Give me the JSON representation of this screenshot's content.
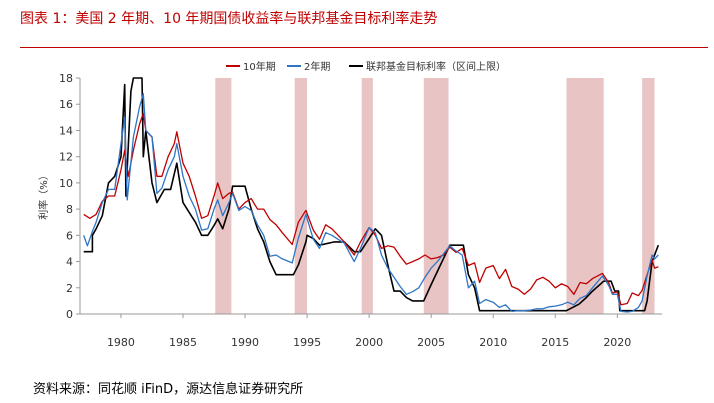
{
  "figure": {
    "title": "图表 1：美国 2 年期、10 年期国债收益率与联邦基金目标利率走势",
    "source": "资料来源：同花顺 iFinD，源达信息证券研究所"
  },
  "chart_data": {
    "type": "line",
    "title": "",
    "xlabel": "",
    "ylabel": "利率（%）",
    "xlim": [
      1976.7,
      2023.6
    ],
    "ylim": [
      0,
      18
    ],
    "yticks": [
      0,
      2,
      4,
      6,
      8,
      10,
      12,
      14,
      16,
      18
    ],
    "xticks": [
      1980,
      1985,
      1990,
      1995,
      2000,
      2005,
      2010,
      2015,
      2020
    ],
    "grid": false,
    "legend_position": "top-center",
    "recessions": [
      [
        1987.6,
        1988.9
      ],
      [
        1994.0,
        1995.0
      ],
      [
        1999.4,
        2000.3
      ],
      [
        2004.4,
        2006.4
      ],
      [
        2015.9,
        2018.9
      ],
      [
        2022.0,
        2023.0
      ]
    ],
    "recession_color": "#e8c4c4",
    "series": [
      {
        "name": "10年期",
        "color": "#c00000",
        "points": [
          [
            1977.0,
            7.6
          ],
          [
            1977.5,
            7.3
          ],
          [
            1978.0,
            7.6
          ],
          [
            1978.5,
            8.6
          ],
          [
            1979.0,
            9.0
          ],
          [
            1979.5,
            9.0
          ],
          [
            1980.0,
            11.0
          ],
          [
            1980.3,
            12.5
          ],
          [
            1980.6,
            10.5
          ],
          [
            1981.0,
            12.5
          ],
          [
            1981.5,
            14.5
          ],
          [
            1981.8,
            15.3
          ],
          [
            1982.0,
            14.0
          ],
          [
            1982.5,
            13.5
          ],
          [
            1982.9,
            10.5
          ],
          [
            1983.3,
            10.5
          ],
          [
            1983.8,
            12.0
          ],
          [
            1984.3,
            13.0
          ],
          [
            1984.5,
            13.9
          ],
          [
            1985.0,
            11.5
          ],
          [
            1985.5,
            10.5
          ],
          [
            1986.0,
            9.0
          ],
          [
            1986.5,
            7.3
          ],
          [
            1987.0,
            7.5
          ],
          [
            1987.5,
            9.0
          ],
          [
            1987.8,
            10.0
          ],
          [
            1988.2,
            8.8
          ],
          [
            1988.7,
            9.2
          ],
          [
            1989.0,
            9.3
          ],
          [
            1989.5,
            8.0
          ],
          [
            1990.0,
            8.5
          ],
          [
            1990.5,
            8.8
          ],
          [
            1991.0,
            8.0
          ],
          [
            1991.5,
            8.0
          ],
          [
            1992.0,
            7.2
          ],
          [
            1992.5,
            6.8
          ],
          [
            1993.0,
            6.2
          ],
          [
            1993.8,
            5.3
          ],
          [
            1994.3,
            7.0
          ],
          [
            1994.9,
            7.9
          ],
          [
            1995.5,
            6.4
          ],
          [
            1996.0,
            5.7
          ],
          [
            1996.5,
            6.8
          ],
          [
            1997.0,
            6.5
          ],
          [
            1997.5,
            6.0
          ],
          [
            1998.0,
            5.5
          ],
          [
            1998.8,
            4.5
          ],
          [
            1999.3,
            5.5
          ],
          [
            2000.0,
            6.6
          ],
          [
            2000.5,
            6.0
          ],
          [
            2001.0,
            5.0
          ],
          [
            2001.5,
            5.2
          ],
          [
            2002.0,
            5.1
          ],
          [
            2002.5,
            4.4
          ],
          [
            2003.0,
            3.8
          ],
          [
            2003.5,
            4.0
          ],
          [
            2004.0,
            4.2
          ],
          [
            2004.5,
            4.5
          ],
          [
            2005.0,
            4.2
          ],
          [
            2005.5,
            4.3
          ],
          [
            2006.0,
            4.5
          ],
          [
            2006.5,
            5.1
          ],
          [
            2007.0,
            4.7
          ],
          [
            2007.5,
            5.0
          ],
          [
            2008.0,
            3.7
          ],
          [
            2008.5,
            3.9
          ],
          [
            2008.9,
            2.4
          ],
          [
            2009.4,
            3.5
          ],
          [
            2010.0,
            3.7
          ],
          [
            2010.5,
            2.7
          ],
          [
            2011.0,
            3.4
          ],
          [
            2011.5,
            2.1
          ],
          [
            2012.0,
            1.9
          ],
          [
            2012.5,
            1.5
          ],
          [
            2013.0,
            1.9
          ],
          [
            2013.5,
            2.6
          ],
          [
            2014.0,
            2.8
          ],
          [
            2014.5,
            2.5
          ],
          [
            2015.0,
            2.0
          ],
          [
            2015.5,
            2.3
          ],
          [
            2016.0,
            2.1
          ],
          [
            2016.5,
            1.5
          ],
          [
            2017.0,
            2.4
          ],
          [
            2017.5,
            2.3
          ],
          [
            2018.0,
            2.7
          ],
          [
            2018.8,
            3.1
          ],
          [
            2019.3,
            2.4
          ],
          [
            2019.6,
            1.6
          ],
          [
            2020.0,
            1.7
          ],
          [
            2020.3,
            0.7
          ],
          [
            2020.8,
            0.8
          ],
          [
            2021.2,
            1.6
          ],
          [
            2021.7,
            1.4
          ],
          [
            2022.0,
            1.8
          ],
          [
            2022.4,
            3.0
          ],
          [
            2022.8,
            4.1
          ],
          [
            2023.0,
            3.5
          ],
          [
            2023.3,
            3.6
          ]
        ]
      },
      {
        "name": "2年期",
        "color": "#2e75c6",
        "points": [
          [
            1977.0,
            6.0
          ],
          [
            1977.3,
            5.2
          ],
          [
            1977.7,
            6.3
          ],
          [
            1978.0,
            7.0
          ],
          [
            1978.5,
            8.5
          ],
          [
            1979.0,
            9.5
          ],
          [
            1979.5,
            9.5
          ],
          [
            1980.0,
            13.0
          ],
          [
            1980.3,
            15.0
          ],
          [
            1980.5,
            8.7
          ],
          [
            1981.0,
            13.5
          ],
          [
            1981.5,
            15.8
          ],
          [
            1981.8,
            16.8
          ],
          [
            1982.0,
            14.0
          ],
          [
            1982.5,
            13.5
          ],
          [
            1982.9,
            9.2
          ],
          [
            1983.3,
            9.6
          ],
          [
            1983.8,
            11.0
          ],
          [
            1984.3,
            12.0
          ],
          [
            1984.5,
            13.0
          ],
          [
            1985.0,
            10.5
          ],
          [
            1985.5,
            9.0
          ],
          [
            1986.0,
            8.0
          ],
          [
            1986.5,
            6.4
          ],
          [
            1987.0,
            6.5
          ],
          [
            1987.5,
            8.0
          ],
          [
            1987.8,
            8.7
          ],
          [
            1988.2,
            7.5
          ],
          [
            1988.7,
            8.5
          ],
          [
            1989.0,
            9.2
          ],
          [
            1989.5,
            7.9
          ],
          [
            1990.0,
            8.2
          ],
          [
            1990.5,
            7.9
          ],
          [
            1991.0,
            6.8
          ],
          [
            1991.5,
            6.0
          ],
          [
            1992.0,
            4.4
          ],
          [
            1992.5,
            4.5
          ],
          [
            1993.0,
            4.2
          ],
          [
            1993.8,
            3.9
          ],
          [
            1994.3,
            5.8
          ],
          [
            1994.9,
            7.6
          ],
          [
            1995.5,
            5.7
          ],
          [
            1996.0,
            5.0
          ],
          [
            1996.5,
            6.2
          ],
          [
            1997.0,
            6.0
          ],
          [
            1997.5,
            5.7
          ],
          [
            1998.0,
            5.4
          ],
          [
            1998.8,
            4.0
          ],
          [
            1999.3,
            5.0
          ],
          [
            2000.0,
            6.6
          ],
          [
            2000.5,
            6.2
          ],
          [
            2001.0,
            4.5
          ],
          [
            2001.5,
            3.5
          ],
          [
            2002.0,
            2.8
          ],
          [
            2002.5,
            2.1
          ],
          [
            2003.0,
            1.5
          ],
          [
            2003.5,
            1.7
          ],
          [
            2004.0,
            2.0
          ],
          [
            2004.5,
            2.8
          ],
          [
            2005.0,
            3.5
          ],
          [
            2005.5,
            4.0
          ],
          [
            2006.0,
            4.6
          ],
          [
            2006.5,
            5.2
          ],
          [
            2007.0,
            4.8
          ],
          [
            2007.5,
            4.5
          ],
          [
            2008.0,
            2.0
          ],
          [
            2008.5,
            2.5
          ],
          [
            2008.9,
            0.8
          ],
          [
            2009.4,
            1.1
          ],
          [
            2010.0,
            0.9
          ],
          [
            2010.5,
            0.5
          ],
          [
            2011.0,
            0.7
          ],
          [
            2011.5,
            0.2
          ],
          [
            2012.0,
            0.25
          ],
          [
            2012.5,
            0.25
          ],
          [
            2013.0,
            0.3
          ],
          [
            2013.5,
            0.4
          ],
          [
            2014.0,
            0.4
          ],
          [
            2014.5,
            0.55
          ],
          [
            2015.0,
            0.6
          ],
          [
            2015.5,
            0.7
          ],
          [
            2016.0,
            0.9
          ],
          [
            2016.5,
            0.7
          ],
          [
            2017.0,
            1.2
          ],
          [
            2017.5,
            1.4
          ],
          [
            2018.0,
            2.0
          ],
          [
            2018.8,
            2.9
          ],
          [
            2019.3,
            2.2
          ],
          [
            2019.6,
            1.5
          ],
          [
            2020.0,
            1.5
          ],
          [
            2020.3,
            0.2
          ],
          [
            2020.8,
            0.15
          ],
          [
            2021.2,
            0.2
          ],
          [
            2021.7,
            0.5
          ],
          [
            2022.0,
            1.0
          ],
          [
            2022.4,
            2.9
          ],
          [
            2022.8,
            4.5
          ],
          [
            2023.0,
            4.2
          ],
          [
            2023.3,
            4.5
          ]
        ]
      },
      {
        "name": "联邦基金目标利率（区间上限）",
        "color": "#000000",
        "points": [
          [
            1977.0,
            4.75
          ],
          [
            1977.7,
            4.75
          ],
          [
            1977.7,
            6.0
          ],
          [
            1978.0,
            6.5
          ],
          [
            1978.5,
            7.5
          ],
          [
            1979.0,
            10.0
          ],
          [
            1979.5,
            10.5
          ],
          [
            1980.0,
            12.0
          ],
          [
            1980.3,
            17.5
          ],
          [
            1980.4,
            9.0
          ],
          [
            1980.8,
            17.0
          ],
          [
            1981.0,
            18.0
          ],
          [
            1981.7,
            18.0
          ],
          [
            1981.8,
            12.0
          ],
          [
            1982.0,
            14.0
          ],
          [
            1982.5,
            10.0
          ],
          [
            1982.9,
            8.5
          ],
          [
            1983.5,
            9.5
          ],
          [
            1984.0,
            9.5
          ],
          [
            1984.5,
            11.5
          ],
          [
            1985.0,
            8.5
          ],
          [
            1985.5,
            7.75
          ],
          [
            1986.0,
            7.0
          ],
          [
            1986.5,
            6.0
          ],
          [
            1987.0,
            6.0
          ],
          [
            1987.5,
            6.75
          ],
          [
            1987.8,
            7.25
          ],
          [
            1988.2,
            6.5
          ],
          [
            1988.7,
            8.0
          ],
          [
            1989.0,
            9.75
          ],
          [
            1990.0,
            9.75
          ],
          [
            1990.5,
            8.0
          ],
          [
            1991.0,
            6.5
          ],
          [
            1991.5,
            5.5
          ],
          [
            1992.0,
            4.0
          ],
          [
            1992.5,
            3.0
          ],
          [
            1993.0,
            3.0
          ],
          [
            1993.9,
            3.0
          ],
          [
            1994.3,
            3.75
          ],
          [
            1994.9,
            5.5
          ],
          [
            1995.0,
            6.0
          ],
          [
            1995.5,
            5.75
          ],
          [
            1996.0,
            5.25
          ],
          [
            1997.2,
            5.5
          ],
          [
            1998.0,
            5.5
          ],
          [
            1998.8,
            4.75
          ],
          [
            1999.3,
            4.75
          ],
          [
            2000.0,
            5.75
          ],
          [
            2000.5,
            6.5
          ],
          [
            2001.0,
            6.0
          ],
          [
            2001.5,
            3.75
          ],
          [
            2002.0,
            1.75
          ],
          [
            2002.5,
            1.75
          ],
          [
            2003.0,
            1.25
          ],
          [
            2003.5,
            1.0
          ],
          [
            2004.4,
            1.0
          ],
          [
            2005.0,
            2.25
          ],
          [
            2005.5,
            3.25
          ],
          [
            2006.0,
            4.25
          ],
          [
            2006.5,
            5.25
          ],
          [
            2007.6,
            5.25
          ],
          [
            2008.0,
            3.0
          ],
          [
            2008.5,
            2.0
          ],
          [
            2008.9,
            0.25
          ],
          [
            2015.9,
            0.25
          ],
          [
            2016.9,
            0.75
          ],
          [
            2017.5,
            1.25
          ],
          [
            2018.0,
            1.75
          ],
          [
            2018.9,
            2.5
          ],
          [
            2019.5,
            2.5
          ],
          [
            2019.8,
            1.75
          ],
          [
            2020.1,
            1.75
          ],
          [
            2020.2,
            0.25
          ],
          [
            2022.2,
            0.25
          ],
          [
            2022.4,
            1.0
          ],
          [
            2022.6,
            2.5
          ],
          [
            2022.8,
            4.0
          ],
          [
            2023.0,
            4.5
          ],
          [
            2023.3,
            5.25
          ]
        ]
      }
    ]
  }
}
